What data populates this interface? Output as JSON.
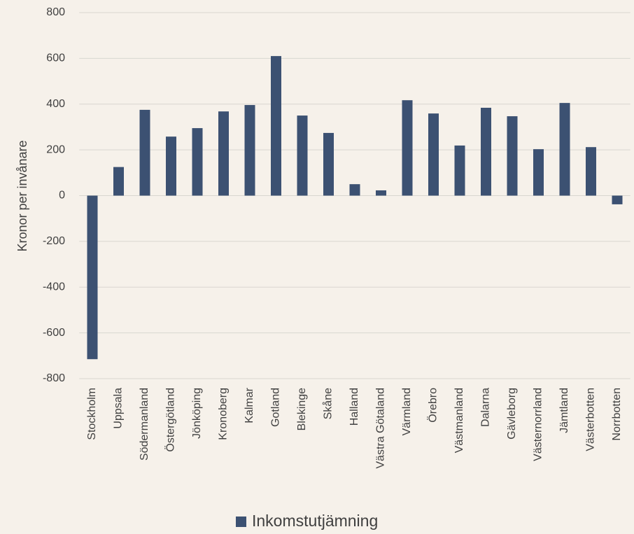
{
  "chart_data": {
    "type": "bar",
    "y_axis_label": "Kronor per invånare",
    "categories": [
      "Stockholm",
      "Uppsala",
      "Södermanland",
      "Östergötland",
      "Jönköping",
      "Kronoberg",
      "Kalmar",
      "Gotland",
      "Blekinge",
      "Skåne",
      "Halland",
      "Västra Götaland",
      "Värmland",
      "Örebro",
      "Västmanland",
      "Dalarna",
      "Gävleborg",
      "Västernorrland",
      "Jämtland",
      "Västerbotten",
      "Norrbotten"
    ],
    "series": [
      {
        "name": "Inkomstutjämning",
        "color": "#3c5172",
        "values": [
          -715,
          125,
          375,
          258,
          295,
          368,
          396,
          610,
          350,
          274,
          50,
          23,
          417,
          359,
          219,
          384,
          347,
          203,
          405,
          212,
          -38
        ]
      }
    ],
    "ylim": [
      -800,
      800
    ],
    "yticks": [
      -800,
      -600,
      -400,
      -200,
      0,
      200,
      400,
      600,
      800
    ],
    "grid": true,
    "legend": "bottom"
  }
}
